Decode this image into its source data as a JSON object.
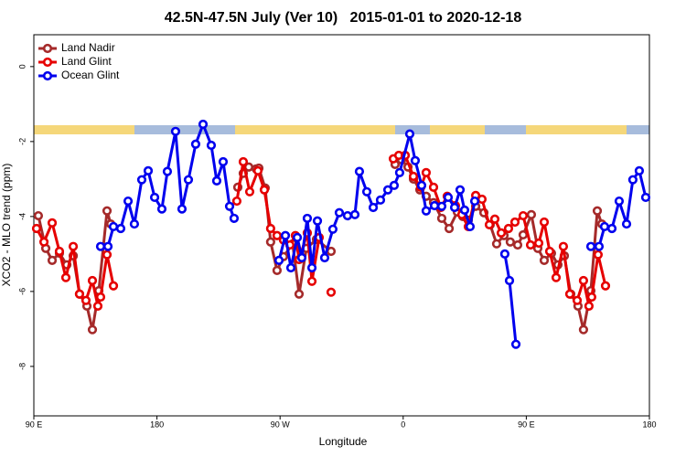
{
  "chart_data": {
    "type": "line",
    "title": "42.5N-47.5N July (Ver 10)   2015-01-01 to 2020-12-18",
    "x_label": "Longitude",
    "y_label": "XCO2 - MLO trend (ppm)",
    "xlim": [
      90,
      540
    ],
    "ylim": [
      -9.32,
      0.85
    ],
    "xticks": [
      {
        "value": 90,
        "label": "90 E"
      },
      {
        "value": 180,
        "label": "180"
      },
      {
        "value": 270,
        "label": "90 W"
      },
      {
        "value": 360,
        "label": "0"
      },
      {
        "value": 450,
        "label": "90 E"
      },
      {
        "value": 540,
        "label": "180"
      }
    ],
    "yticks": [
      0,
      -2,
      -4,
      -6,
      -8
    ],
    "legend": "top-left",
    "series": [
      {
        "name": "Land Nadir",
        "color": "#a52a2a",
        "x": [
          93.3,
          98.7,
          103.4,
          108.7,
          114.1,
          118.8,
          123.4,
          128.8,
          132.8,
          137.5,
          143.5,
          146.2,
          null,
          239.1,
          243.1,
          247.1,
          252.5,
          254.5,
          259.1,
          263.1,
          267.8,
          272.5,
          279.2,
          283.9,
          289.2,
          296.6,
          307.3,
          null,
          354.1,
          358.8,
          363.5,
          367.5,
          372.2,
          376.8,
          382.2,
          388.2,
          393.6,
          399.6,
          403.6,
          407.6,
          413.0,
          419.0,
          423.6,
          428.3,
          433.7,
          438.3,
          443.7,
          447.7,
          453.7,
          458.4,
          463.1,
          468.4,
          473.1,
          477.8,
          482.5,
          487.8,
          491.8,
          497.2,
          501.9,
          505.2
        ],
        "values": [
          -3.98,
          -4.85,
          -5.17,
          -4.98,
          -5.29,
          -5.05,
          -6.07,
          -6.39,
          -7.02,
          -5.98,
          -3.85,
          -4.2,
          null,
          -3.22,
          -2.85,
          -2.68,
          -2.73,
          -2.71,
          -3.24,
          -4.68,
          -5.44,
          -5.07,
          -4.73,
          -6.07,
          -4.85,
          -4.61,
          -4.93,
          null,
          -2.61,
          -2.49,
          -2.68,
          -3.0,
          -3.29,
          -3.46,
          -3.63,
          -4.05,
          -4.32,
          -3.88,
          -4.0,
          -4.1,
          -3.73,
          -3.9,
          -4.22,
          -4.73,
          -4.51,
          -4.68,
          -4.76,
          -4.49,
          -3.95,
          -4.85,
          -5.17,
          -4.98,
          -5.29,
          -5.05,
          -6.07,
          -6.39,
          -7.02,
          -5.98,
          -3.85,
          -4.2
        ]
      },
      {
        "name": "Land Glint",
        "color": "#e60000",
        "x": [
          92.0,
          97.4,
          103.4,
          108.7,
          113.4,
          118.8,
          123.4,
          128.1,
          132.8,
          136.8,
          138.8,
          143.5,
          148.2,
          null,
          238.4,
          243.1,
          247.8,
          253.8,
          258.5,
          263.1,
          267.8,
          272.5,
          277.2,
          281.2,
          283.9,
          289.9,
          293.3,
          298.6,
          null,
          307.3,
          null,
          352.8,
          356.8,
          361.5,
          367.5,
          372.8,
          376.8,
          382.2,
          387.5,
          392.2,
          398.2,
          402.9,
          407.6,
          413.0,
          417.6,
          423.0,
          427.0,
          431.7,
          437.0,
          441.7,
          447.7,
          453.1,
          459.1,
          463.1,
          467.1,
          471.8,
          477.1,
          481.8,
          487.2,
          491.8,
          495.8,
          497.8,
          502.5,
          507.9
        ],
        "values": [
          -4.32,
          -4.68,
          -4.17,
          -4.93,
          -5.63,
          -4.8,
          -6.07,
          -6.24,
          -5.71,
          -6.39,
          -6.15,
          -5.02,
          -5.85,
          null,
          -3.59,
          -2.54,
          -3.34,
          -2.78,
          -3.29,
          -4.32,
          -4.51,
          -4.63,
          -4.76,
          -4.51,
          -5.15,
          -4.44,
          -5.73,
          -4.56,
          null,
          -6.02,
          null,
          -2.46,
          -2.37,
          -2.37,
          -2.93,
          -3.22,
          -2.83,
          -3.22,
          -3.76,
          -3.46,
          -3.71,
          -3.95,
          -4.27,
          -3.44,
          -3.54,
          -4.22,
          -4.07,
          -4.44,
          -4.32,
          -4.15,
          -3.98,
          -4.76,
          -4.71,
          -4.15,
          -4.93,
          -5.63,
          -4.8,
          -6.07,
          -6.24,
          -5.71,
          -6.39,
          -6.15,
          -5.02,
          -5.85
        ]
      },
      {
        "name": "Ocean Glint",
        "color": "#0000ee",
        "x": [
          138.8,
          144.2,
          148.2,
          153.5,
          158.9,
          163.5,
          168.9,
          173.6,
          178.3,
          183.6,
          187.6,
          193.6,
          198.3,
          203.0,
          208.3,
          213.7,
          219.7,
          223.7,
          228.4,
          233.1,
          236.4,
          null,
          269.2,
          273.9,
          277.9,
          282.6,
          285.9,
          289.9,
          293.3,
          297.3,
          302.6,
          308.6,
          313.3,
          319.3,
          324.7,
          328.0,
          333.4,
          338.1,
          343.4,
          348.8,
          353.4,
          357.4,
          364.8,
          368.8,
          373.5,
          376.8,
          382.9,
          388.2,
          392.9,
          397.6,
          401.6,
          404.9,
          408.9,
          412.3,
          null,
          434.3,
          437.7,
          442.4,
          null,
          497.2,
          503.2,
          507.2,
          512.6,
          517.9,
          523.3,
          527.9,
          532.6,
          537.3
        ],
        "values": [
          -4.8,
          -4.8,
          -4.27,
          -4.32,
          -3.59,
          -4.2,
          -3.02,
          -2.78,
          -3.49,
          -3.8,
          -2.8,
          -1.73,
          -3.8,
          -3.02,
          -2.07,
          -1.54,
          -2.1,
          -3.05,
          -2.54,
          -3.73,
          -4.05,
          null,
          -5.17,
          -4.51,
          -5.37,
          -4.56,
          -5.1,
          -4.05,
          -5.37,
          -4.12,
          -5.1,
          -4.34,
          -3.9,
          -3.98,
          -3.95,
          -2.8,
          -3.34,
          -3.76,
          -3.56,
          -3.29,
          -3.17,
          -2.83,
          -1.8,
          -2.51,
          -3.17,
          -3.85,
          -3.71,
          -3.73,
          -3.49,
          -3.76,
          -3.29,
          -3.83,
          -4.27,
          -3.59,
          null,
          -5.0,
          -5.71,
          -7.41,
          null,
          -4.8,
          -4.8,
          -4.27,
          -4.32,
          -3.59,
          -4.2,
          -3.02,
          -2.78,
          -3.49
        ]
      }
    ]
  }
}
